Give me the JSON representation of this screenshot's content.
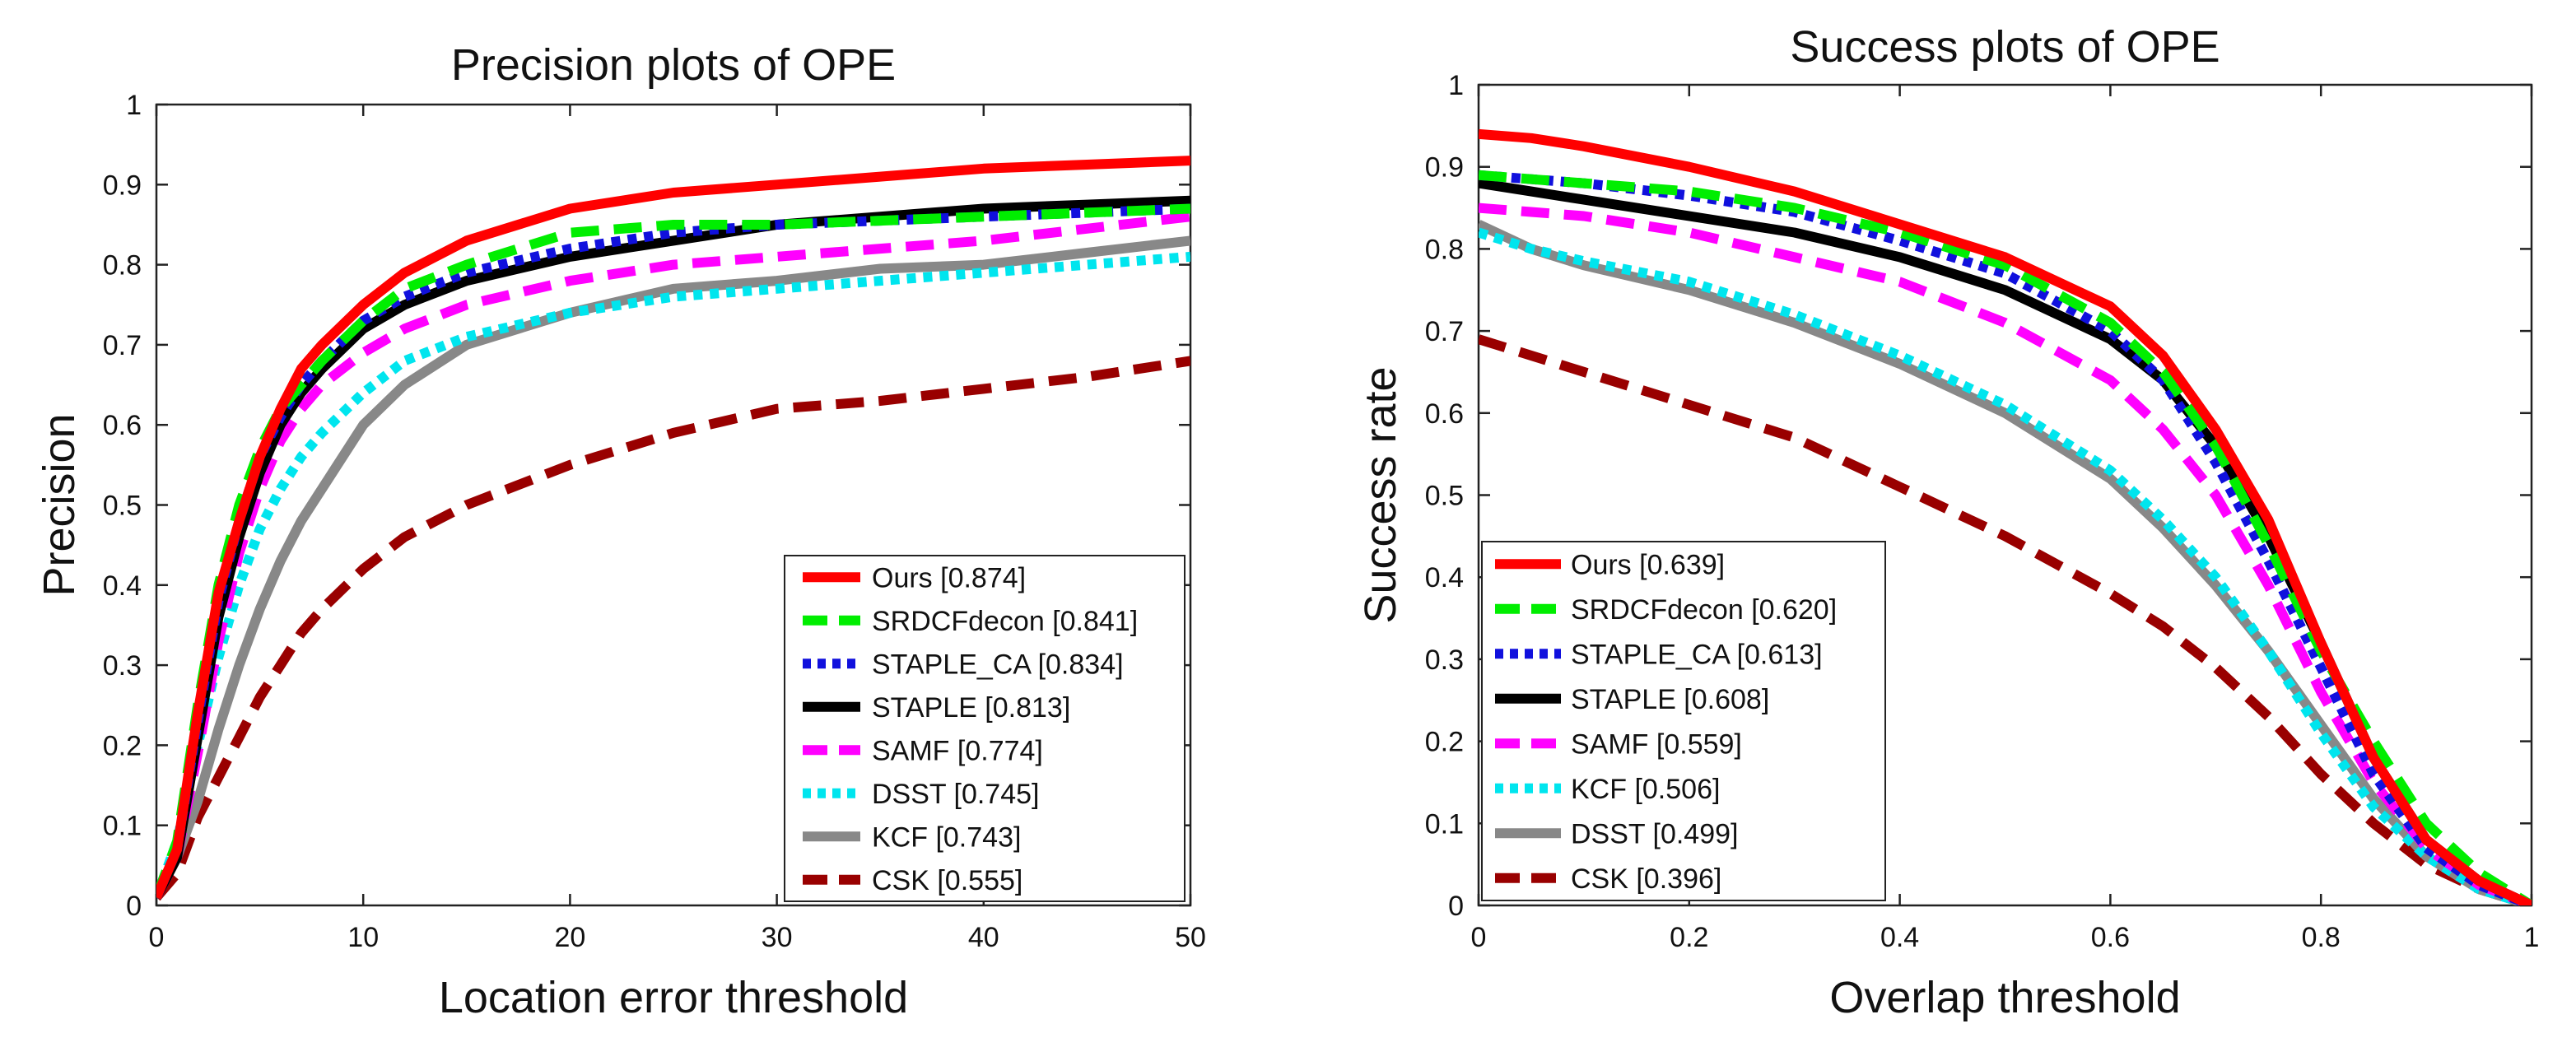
{
  "chart_data": [
    {
      "type": "line",
      "title": "Precision plots of OPE",
      "xlabel": "Location error threshold",
      "ylabel": "Precision",
      "xlim": [
        0,
        50
      ],
      "ylim": [
        0,
        1
      ],
      "xticks": [
        "0",
        "10",
        "20",
        "30",
        "40",
        "50"
      ],
      "yticks": [
        "0",
        "0.1",
        "0.2",
        "0.3",
        "0.4",
        "0.5",
        "0.6",
        "0.7",
        "0.8",
        "0.9",
        "1"
      ],
      "legend_position": "bottom-right",
      "series": [
        {
          "name": "Ours",
          "label": "Ours [0.874]",
          "color": "#ff0000",
          "style": "solid",
          "x": [
            0,
            1,
            2,
            3,
            4,
            5,
            6,
            7,
            8,
            10,
            12,
            15,
            20,
            25,
            30,
            35,
            40,
            45,
            50
          ],
          "y": [
            0.01,
            0.07,
            0.24,
            0.39,
            0.48,
            0.56,
            0.62,
            0.67,
            0.7,
            0.75,
            0.79,
            0.83,
            0.87,
            0.89,
            0.9,
            0.91,
            0.92,
            0.925,
            0.93
          ]
        },
        {
          "name": "SRDCFdecon",
          "label": "SRDCFdecon [0.841]",
          "color": "#00ee00",
          "style": "dashed",
          "x": [
            0,
            1,
            2,
            3,
            4,
            5,
            6,
            7,
            8,
            10,
            12,
            15,
            20,
            25,
            30,
            35,
            40,
            45,
            50
          ],
          "y": [
            0.01,
            0.08,
            0.25,
            0.4,
            0.5,
            0.57,
            0.62,
            0.65,
            0.68,
            0.73,
            0.77,
            0.8,
            0.84,
            0.85,
            0.85,
            0.855,
            0.86,
            0.865,
            0.87
          ]
        },
        {
          "name": "STAPLE_CA",
          "label": "STAPLE_CA [0.834]",
          "color": "#1010dd",
          "style": "dotted",
          "x": [
            0,
            1,
            2,
            3,
            4,
            5,
            6,
            7,
            8,
            10,
            12,
            15,
            20,
            25,
            30,
            35,
            40,
            45,
            50
          ],
          "y": [
            0.01,
            0.07,
            0.23,
            0.38,
            0.48,
            0.56,
            0.61,
            0.65,
            0.68,
            0.73,
            0.76,
            0.79,
            0.82,
            0.84,
            0.85,
            0.855,
            0.86,
            0.865,
            0.87
          ]
        },
        {
          "name": "STAPLE",
          "label": "STAPLE [0.813]",
          "color": "#000000",
          "style": "solid",
          "x": [
            0,
            1,
            2,
            3,
            4,
            5,
            6,
            7,
            8,
            10,
            12,
            15,
            20,
            25,
            30,
            35,
            40,
            45,
            50
          ],
          "y": [
            0.01,
            0.06,
            0.21,
            0.36,
            0.46,
            0.54,
            0.6,
            0.64,
            0.67,
            0.72,
            0.75,
            0.78,
            0.81,
            0.83,
            0.85,
            0.86,
            0.87,
            0.875,
            0.88
          ]
        },
        {
          "name": "SAMF",
          "label": "SAMF [0.774]",
          "color": "#ff00ff",
          "style": "dashed",
          "x": [
            0,
            1,
            2,
            3,
            4,
            5,
            6,
            7,
            8,
            10,
            12,
            15,
            20,
            25,
            30,
            35,
            40,
            45,
            50
          ],
          "y": [
            0.01,
            0.06,
            0.19,
            0.33,
            0.44,
            0.52,
            0.58,
            0.62,
            0.65,
            0.69,
            0.72,
            0.75,
            0.78,
            0.8,
            0.81,
            0.82,
            0.83,
            0.845,
            0.86
          ]
        },
        {
          "name": "DSST",
          "label": "DSST [0.745]",
          "color": "#00e5ee",
          "style": "dotted",
          "x": [
            0,
            1,
            2,
            3,
            4,
            5,
            6,
            7,
            8,
            10,
            12,
            15,
            20,
            25,
            30,
            35,
            40,
            45,
            50
          ],
          "y": [
            0.01,
            0.08,
            0.2,
            0.31,
            0.4,
            0.47,
            0.52,
            0.56,
            0.59,
            0.64,
            0.68,
            0.71,
            0.74,
            0.76,
            0.77,
            0.78,
            0.79,
            0.8,
            0.81
          ]
        },
        {
          "name": "KCF",
          "label": "KCF [0.743]",
          "color": "#888888",
          "style": "solid",
          "x": [
            0,
            1,
            2,
            3,
            4,
            5,
            6,
            7,
            8,
            10,
            12,
            15,
            20,
            25,
            30,
            35,
            40,
            45,
            50
          ],
          "y": [
            0.01,
            0.06,
            0.13,
            0.22,
            0.3,
            0.37,
            0.43,
            0.48,
            0.52,
            0.6,
            0.65,
            0.7,
            0.74,
            0.77,
            0.78,
            0.795,
            0.8,
            0.815,
            0.83
          ]
        },
        {
          "name": "CSK",
          "label": "CSK [0.555]",
          "color": "#990000",
          "style": "dashed",
          "x": [
            0,
            1,
            2,
            3,
            4,
            5,
            6,
            7,
            8,
            10,
            12,
            15,
            20,
            25,
            30,
            35,
            40,
            45,
            50
          ],
          "y": [
            0.01,
            0.04,
            0.11,
            0.16,
            0.21,
            0.26,
            0.3,
            0.34,
            0.37,
            0.42,
            0.46,
            0.5,
            0.55,
            0.59,
            0.62,
            0.63,
            0.645,
            0.66,
            0.68
          ]
        }
      ]
    },
    {
      "type": "line",
      "title": "Success plots of OPE",
      "xlabel": "Overlap threshold",
      "ylabel": "Success rate",
      "xlim": [
        0,
        1
      ],
      "ylim": [
        0,
        1
      ],
      "xticks": [
        "0",
        "0.2",
        "0.4",
        "0.6",
        "0.8",
        "1"
      ],
      "yticks": [
        "0",
        "0.1",
        "0.2",
        "0.3",
        "0.4",
        "0.5",
        "0.6",
        "0.7",
        "0.8",
        "0.9",
        "1"
      ],
      "legend_position": "bottom-left",
      "series": [
        {
          "name": "Ours",
          "label": "Ours [0.639]",
          "color": "#ff0000",
          "style": "solid",
          "x": [
            0,
            0.05,
            0.1,
            0.2,
            0.3,
            0.4,
            0.5,
            0.6,
            0.65,
            0.7,
            0.75,
            0.8,
            0.85,
            0.9,
            0.95,
            1.0
          ],
          "y": [
            0.94,
            0.935,
            0.925,
            0.9,
            0.87,
            0.83,
            0.79,
            0.73,
            0.67,
            0.58,
            0.47,
            0.32,
            0.18,
            0.08,
            0.03,
            0.0
          ]
        },
        {
          "name": "SRDCFdecon",
          "label": "SRDCFdecon [0.620]",
          "color": "#00ee00",
          "style": "dashed",
          "x": [
            0,
            0.05,
            0.1,
            0.2,
            0.3,
            0.4,
            0.5,
            0.6,
            0.65,
            0.7,
            0.75,
            0.8,
            0.85,
            0.9,
            0.95,
            1.0
          ],
          "y": [
            0.89,
            0.885,
            0.88,
            0.87,
            0.85,
            0.82,
            0.78,
            0.71,
            0.65,
            0.56,
            0.44,
            0.31,
            0.2,
            0.1,
            0.04,
            0.0
          ]
        },
        {
          "name": "STAPLE_CA",
          "label": "STAPLE_CA [0.613]",
          "color": "#1010dd",
          "style": "dotted",
          "x": [
            0,
            0.05,
            0.1,
            0.2,
            0.3,
            0.4,
            0.5,
            0.6,
            0.65,
            0.7,
            0.75,
            0.8,
            0.85,
            0.9,
            0.95,
            1.0
          ],
          "y": [
            0.89,
            0.885,
            0.88,
            0.865,
            0.845,
            0.81,
            0.77,
            0.7,
            0.64,
            0.54,
            0.42,
            0.29,
            0.16,
            0.07,
            0.025,
            0.0
          ]
        },
        {
          "name": "STAPLE",
          "label": "STAPLE [0.608]",
          "color": "#000000",
          "style": "solid",
          "x": [
            0,
            0.05,
            0.1,
            0.2,
            0.3,
            0.4,
            0.5,
            0.6,
            0.65,
            0.7,
            0.75,
            0.8,
            0.85,
            0.9,
            0.95,
            1.0
          ],
          "y": [
            0.88,
            0.87,
            0.86,
            0.84,
            0.82,
            0.79,
            0.75,
            0.69,
            0.64,
            0.56,
            0.45,
            0.32,
            0.18,
            0.08,
            0.03,
            0.0
          ]
        },
        {
          "name": "SAMF",
          "label": "SAMF [0.559]",
          "color": "#ff00ff",
          "style": "dashed",
          "x": [
            0,
            0.05,
            0.1,
            0.2,
            0.3,
            0.4,
            0.5,
            0.6,
            0.65,
            0.7,
            0.75,
            0.8,
            0.85,
            0.9,
            0.95,
            1.0
          ],
          "y": [
            0.85,
            0.845,
            0.84,
            0.82,
            0.79,
            0.76,
            0.71,
            0.64,
            0.58,
            0.5,
            0.39,
            0.26,
            0.15,
            0.07,
            0.025,
            0.0
          ]
        },
        {
          "name": "KCF",
          "label": "KCF [0.506]",
          "color": "#00e5ee",
          "style": "dotted",
          "x": [
            0,
            0.05,
            0.1,
            0.2,
            0.3,
            0.4,
            0.5,
            0.6,
            0.65,
            0.7,
            0.75,
            0.8,
            0.85,
            0.9,
            0.95,
            1.0
          ],
          "y": [
            0.82,
            0.8,
            0.785,
            0.76,
            0.72,
            0.67,
            0.61,
            0.53,
            0.47,
            0.4,
            0.31,
            0.21,
            0.12,
            0.06,
            0.02,
            0.0
          ]
        },
        {
          "name": "DSST",
          "label": "DSST [0.499]",
          "color": "#888888",
          "style": "solid",
          "x": [
            0,
            0.05,
            0.1,
            0.2,
            0.3,
            0.4,
            0.5,
            0.6,
            0.65,
            0.7,
            0.75,
            0.8,
            0.85,
            0.9,
            0.95,
            1.0
          ],
          "y": [
            0.83,
            0.8,
            0.78,
            0.75,
            0.71,
            0.66,
            0.6,
            0.52,
            0.46,
            0.39,
            0.31,
            0.22,
            0.13,
            0.06,
            0.02,
            0.0
          ]
        },
        {
          "name": "CSK",
          "label": "CSK [0.396]",
          "color": "#990000",
          "style": "dashed",
          "x": [
            0,
            0.05,
            0.1,
            0.2,
            0.3,
            0.4,
            0.5,
            0.6,
            0.65,
            0.7,
            0.75,
            0.8,
            0.85,
            0.9,
            0.95,
            1.0
          ],
          "y": [
            0.69,
            0.67,
            0.65,
            0.61,
            0.57,
            0.51,
            0.45,
            0.38,
            0.34,
            0.29,
            0.23,
            0.16,
            0.1,
            0.05,
            0.02,
            0.0
          ]
        }
      ]
    }
  ]
}
